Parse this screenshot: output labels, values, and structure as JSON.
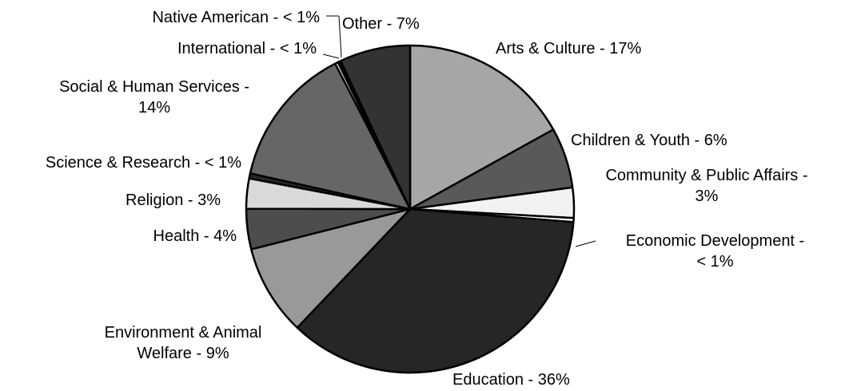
{
  "chart_data": {
    "type": "pie",
    "title": "",
    "colors": {
      "Arts & Culture": "#a6a6a6",
      "Children & Youth": "#595959",
      "Community & Public Affairs": "#f2f2f2",
      "Economic Development": "#ffffff",
      "Education": "#262626",
      "Environment & Animal Welfare": "#999999",
      "Health": "#4d4d4d",
      "Religion": "#d9d9d9",
      "Science & Research": "#262626",
      "Social & Human Services": "#666666",
      "International": "#ffffff",
      "Native American": "#000000",
      "Other": "#333333"
    },
    "slices": [
      {
        "name": "Arts & Culture",
        "value": 17,
        "label_lines": [
          "Arts & Culture - 17%"
        ]
      },
      {
        "name": "Children & Youth",
        "value": 6,
        "label_lines": [
          "Children & Youth - 6%"
        ]
      },
      {
        "name": "Community & Public Affairs",
        "value": 3,
        "label_lines": [
          "Community & Public Affairs -",
          "3%"
        ]
      },
      {
        "name": "Economic Development",
        "value": 0.4,
        "label_lines": [
          "Economic Development -",
          "< 1%"
        ]
      },
      {
        "name": "Education",
        "value": 36,
        "label_lines": [
          "Education - 36%"
        ]
      },
      {
        "name": "Environment & Animal Welfare",
        "value": 9,
        "label_lines": [
          "Environment & Animal",
          "Welfare - 9%"
        ]
      },
      {
        "name": "Health",
        "value": 4,
        "label_lines": [
          "Health - 4%"
        ]
      },
      {
        "name": "Religion",
        "value": 3,
        "label_lines": [
          "Religion - 3%"
        ]
      },
      {
        "name": "Science & Research",
        "value": 0.5,
        "label_lines": [
          "Science & Research - < 1%"
        ]
      },
      {
        "name": "Social & Human Services",
        "value": 14,
        "label_lines": [
          "Social & Human Services -",
          "14%"
        ]
      },
      {
        "name": "International",
        "value": 0.3,
        "label_lines": [
          "International - < 1%"
        ]
      },
      {
        "name": "Native American",
        "value": 0.3,
        "label_lines": [
          "Native American - < 1%"
        ]
      },
      {
        "name": "Other",
        "value": 7,
        "label_lines": [
          "Other - 7%"
        ]
      }
    ]
  }
}
